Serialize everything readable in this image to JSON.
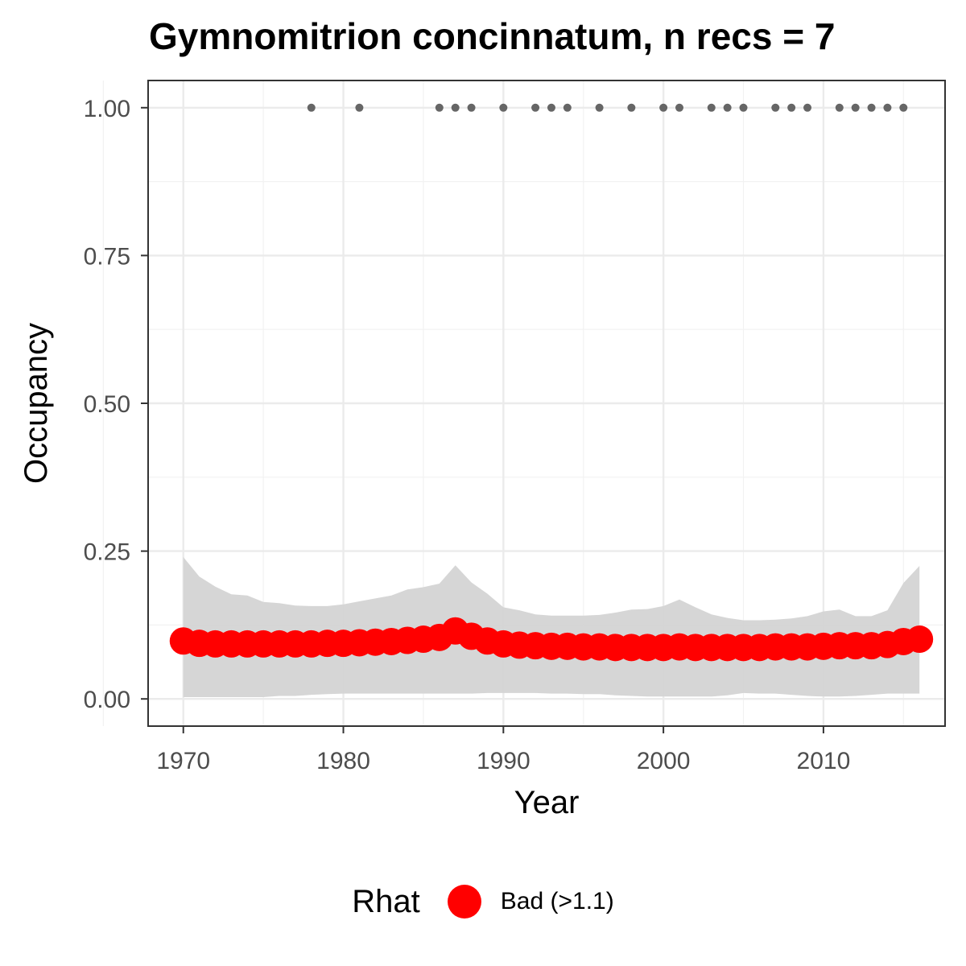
{
  "chart_data": {
    "type": "line",
    "title": "Gymnomitrion concinnatum, n recs = 7",
    "xlabel": "Year",
    "ylabel": "Occupancy",
    "xlim": [
      1967.8,
      2017.6
    ],
    "ylim": [
      -0.046,
      1.046
    ],
    "x_ticks": [
      1970,
      1980,
      1990,
      2000,
      2010
    ],
    "x_tick_labels": [
      "1970",
      "1980",
      "1990",
      "2000",
      "2010"
    ],
    "y_ticks": [
      0,
      0.25,
      0.5,
      0.75,
      1.0
    ],
    "y_tick_labels": [
      "0.00",
      "0.25",
      "0.50",
      "0.75",
      "1.00"
    ],
    "grid": true,
    "legend": {
      "title": "Rhat",
      "position": "bottom",
      "entries": [
        {
          "label": "Bad (>1.1)",
          "color": "#ff0000"
        }
      ]
    },
    "colors": {
      "mean_points": "#ff0000",
      "ribbon": "#d3d3d3",
      "records": "#666666"
    },
    "years": [
      1970,
      1971,
      1972,
      1973,
      1974,
      1975,
      1976,
      1977,
      1978,
      1979,
      1980,
      1981,
      1982,
      1983,
      1984,
      1985,
      1986,
      1987,
      1988,
      1989,
      1990,
      1991,
      1992,
      1993,
      1994,
      1995,
      1996,
      1997,
      1998,
      1999,
      2000,
      2001,
      2002,
      2003,
      2004,
      2005,
      2006,
      2007,
      2008,
      2009,
      2010,
      2011,
      2012,
      2013,
      2014,
      2015,
      2016
    ],
    "mean": [
      0.098,
      0.094,
      0.093,
      0.093,
      0.093,
      0.093,
      0.093,
      0.093,
      0.093,
      0.094,
      0.094,
      0.095,
      0.096,
      0.097,
      0.099,
      0.101,
      0.104,
      0.115,
      0.106,
      0.098,
      0.093,
      0.091,
      0.09,
      0.089,
      0.089,
      0.088,
      0.088,
      0.087,
      0.087,
      0.087,
      0.087,
      0.088,
      0.087,
      0.087,
      0.087,
      0.087,
      0.087,
      0.088,
      0.088,
      0.088,
      0.089,
      0.09,
      0.09,
      0.09,
      0.092,
      0.097,
      0.101
    ],
    "upper": [
      0.24,
      0.207,
      0.19,
      0.177,
      0.175,
      0.164,
      0.162,
      0.158,
      0.157,
      0.157,
      0.16,
      0.165,
      0.17,
      0.175,
      0.185,
      0.189,
      0.195,
      0.226,
      0.197,
      0.178,
      0.155,
      0.15,
      0.143,
      0.141,
      0.141,
      0.141,
      0.142,
      0.146,
      0.151,
      0.152,
      0.157,
      0.168,
      0.155,
      0.143,
      0.137,
      0.133,
      0.133,
      0.134,
      0.136,
      0.14,
      0.148,
      0.151,
      0.14,
      0.14,
      0.15,
      0.196,
      0.225
    ],
    "lower": [
      0.003,
      0.003,
      0.003,
      0.003,
      0.003,
      0.003,
      0.005,
      0.005,
      0.007,
      0.008,
      0.009,
      0.009,
      0.009,
      0.009,
      0.009,
      0.009,
      0.009,
      0.009,
      0.009,
      0.01,
      0.01,
      0.01,
      0.01,
      0.009,
      0.009,
      0.008,
      0.008,
      0.006,
      0.005,
      0.004,
      0.004,
      0.004,
      0.004,
      0.004,
      0.006,
      0.01,
      0.009,
      0.009,
      0.007,
      0.005,
      0.004,
      0.004,
      0.005,
      0.007,
      0.009,
      0.009,
      0.009
    ],
    "record_years": [
      1978,
      1981,
      1986,
      1987,
      1988,
      1990,
      1992,
      1993,
      1994,
      1996,
      1998,
      2000,
      2001,
      2003,
      2004,
      2005,
      2007,
      2008,
      2009,
      2011,
      2012,
      2013,
      2014,
      2015
    ],
    "record_value": 1.0
  }
}
